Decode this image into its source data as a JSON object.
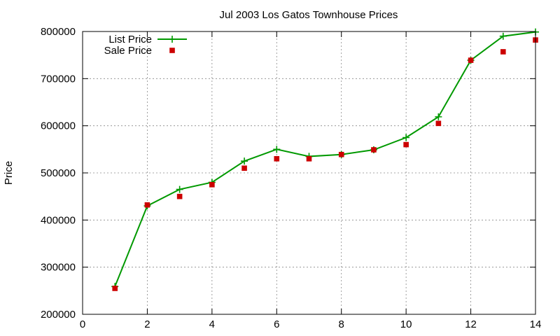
{
  "chart_data": {
    "type": "line",
    "title": "Jul 2003 Los Gatos Townhouse Prices",
    "xlabel": "",
    "ylabel": "Price",
    "xlim": [
      0,
      14
    ],
    "ylim": [
      200000,
      800000
    ],
    "x_ticks": [
      0,
      2,
      4,
      6,
      8,
      10,
      12,
      14
    ],
    "y_ticks": [
      200000,
      300000,
      400000,
      500000,
      600000,
      700000,
      800000
    ],
    "grid": true,
    "legend_position": "top-left",
    "series": [
      {
        "name": "List Price",
        "style": "linespoints",
        "marker": "plus",
        "color": "#009900",
        "x": [
          1,
          2,
          3,
          4,
          5,
          6,
          7,
          8,
          9,
          10,
          11,
          12,
          13,
          14
        ],
        "values": [
          259000,
          430000,
          465000,
          480000,
          525000,
          550000,
          535000,
          539000,
          549000,
          575000,
          619000,
          739000,
          790000,
          799000
        ]
      },
      {
        "name": "Sale Price",
        "style": "points",
        "marker": "square",
        "color": "#cc0000",
        "x": [
          1,
          2,
          3,
          4,
          5,
          6,
          7,
          8,
          9,
          10,
          11,
          12,
          13,
          14
        ],
        "values": [
          255000,
          432000,
          450000,
          475000,
          510000,
          530000,
          530000,
          539000,
          549000,
          560000,
          605000,
          739000,
          757000,
          782000
        ]
      }
    ]
  }
}
